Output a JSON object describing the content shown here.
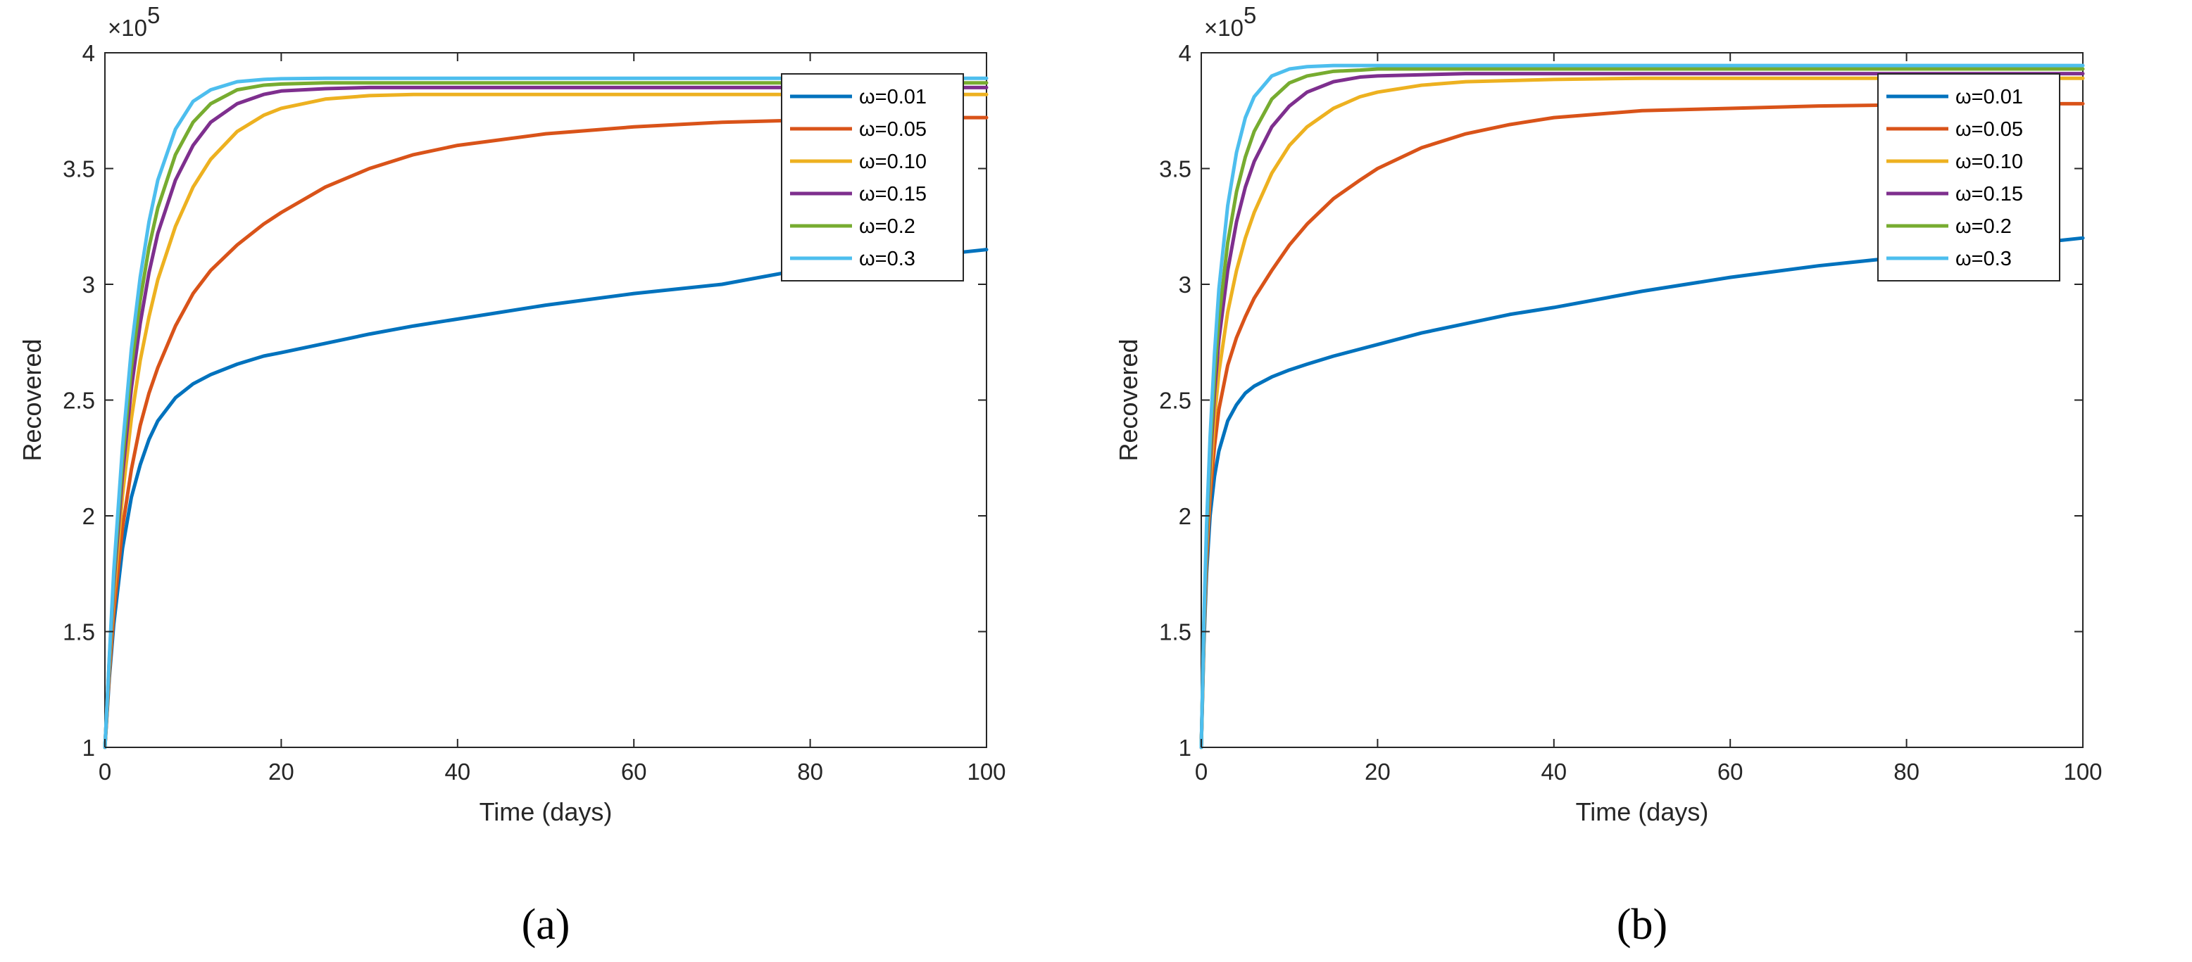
{
  "chart_data": [
    {
      "type": "line",
      "caption": "(a)",
      "xlabel": "Time (days)",
      "ylabel": "Recovered",
      "xlim": [
        0,
        100
      ],
      "ylim": [
        1,
        4
      ],
      "y_multiplier": "×10",
      "y_exponent": "5",
      "xticks": [
        0,
        20,
        40,
        60,
        80,
        100
      ],
      "yticks": [
        1,
        1.5,
        2,
        2.5,
        3,
        3.5,
        4
      ],
      "legend_position": "top-right",
      "x": [
        0,
        0.5,
        1,
        2,
        3,
        4,
        5,
        6,
        8,
        10,
        12,
        15,
        18,
        20,
        25,
        30,
        35,
        40,
        50,
        60,
        70,
        80,
        90,
        100
      ],
      "series": [
        {
          "name": "ω=0.01",
          "color": "#0072BD",
          "values": [
            1.0,
            1.3,
            1.53,
            1.86,
            2.08,
            2.22,
            2.33,
            2.41,
            2.51,
            2.57,
            2.61,
            2.655,
            2.69,
            2.705,
            2.745,
            2.785,
            2.82,
            2.85,
            2.91,
            2.96,
            3.0,
            3.07,
            3.11,
            3.15
          ]
        },
        {
          "name": "ω=0.05",
          "color": "#D95319",
          "values": [
            1.0,
            1.32,
            1.58,
            1.95,
            2.2,
            2.39,
            2.53,
            2.64,
            2.82,
            2.96,
            3.06,
            3.17,
            3.26,
            3.31,
            3.42,
            3.5,
            3.56,
            3.6,
            3.65,
            3.68,
            3.7,
            3.71,
            3.72,
            3.72
          ]
        },
        {
          "name": "ω=0.10",
          "color": "#EDB120",
          "values": [
            1.0,
            1.35,
            1.65,
            2.09,
            2.42,
            2.67,
            2.86,
            3.02,
            3.25,
            3.42,
            3.54,
            3.66,
            3.73,
            3.76,
            3.8,
            3.815,
            3.82,
            3.82,
            3.82,
            3.82,
            3.82,
            3.82,
            3.82,
            3.82
          ]
        },
        {
          "name": "ω=0.15",
          "color": "#7E2F8E",
          "values": [
            1.0,
            1.37,
            1.7,
            2.18,
            2.55,
            2.83,
            3.05,
            3.22,
            3.45,
            3.6,
            3.7,
            3.78,
            3.82,
            3.835,
            3.845,
            3.85,
            3.85,
            3.85,
            3.85,
            3.85,
            3.85,
            3.85,
            3.85,
            3.85
          ]
        },
        {
          "name": "ω=0.2",
          "color": "#77AC30",
          "values": [
            1.0,
            1.38,
            1.73,
            2.24,
            2.64,
            2.93,
            3.16,
            3.33,
            3.56,
            3.7,
            3.78,
            3.84,
            3.86,
            3.865,
            3.87,
            3.87,
            3.87,
            3.87,
            3.87,
            3.87,
            3.87,
            3.87,
            3.87,
            3.87
          ]
        },
        {
          "name": "ω=0.3",
          "color": "#4DBEEE",
          "values": [
            1.0,
            1.39,
            1.76,
            2.3,
            2.72,
            3.03,
            3.27,
            3.45,
            3.67,
            3.79,
            3.84,
            3.875,
            3.885,
            3.888,
            3.89,
            3.89,
            3.89,
            3.89,
            3.89,
            3.89,
            3.89,
            3.89,
            3.89,
            3.89
          ]
        }
      ]
    },
    {
      "type": "line",
      "caption": "(b)",
      "xlabel": "Time (days)",
      "ylabel": "Recovered",
      "xlim": [
        0,
        100
      ],
      "ylim": [
        1,
        4
      ],
      "y_multiplier": "×10",
      "y_exponent": "5",
      "xticks": [
        0,
        20,
        40,
        60,
        80,
        100
      ],
      "yticks": [
        1,
        1.5,
        2,
        2.5,
        3,
        3.5,
        4
      ],
      "legend_position": "top-right",
      "x": [
        0,
        0.3,
        0.6,
        1,
        1.5,
        2,
        3,
        4,
        5,
        6,
        8,
        10,
        12,
        15,
        18,
        20,
        25,
        30,
        35,
        40,
        50,
        60,
        70,
        80,
        90,
        100
      ],
      "series": [
        {
          "name": "ω=0.01",
          "color": "#0072BD",
          "values": [
            1.0,
            1.45,
            1.75,
            2.0,
            2.17,
            2.28,
            2.41,
            2.48,
            2.53,
            2.56,
            2.6,
            2.63,
            2.655,
            2.69,
            2.72,
            2.74,
            2.79,
            2.83,
            2.87,
            2.9,
            2.97,
            3.03,
            3.08,
            3.12,
            3.16,
            3.2
          ]
        },
        {
          "name": "ω=0.05",
          "color": "#D95319",
          "values": [
            1.0,
            1.48,
            1.8,
            2.08,
            2.3,
            2.46,
            2.65,
            2.77,
            2.86,
            2.94,
            3.06,
            3.17,
            3.26,
            3.37,
            3.45,
            3.5,
            3.59,
            3.65,
            3.69,
            3.72,
            3.75,
            3.76,
            3.77,
            3.775,
            3.78,
            3.78
          ]
        },
        {
          "name": "ω=0.10",
          "color": "#EDB120",
          "values": [
            1.0,
            1.5,
            1.85,
            2.15,
            2.42,
            2.62,
            2.88,
            3.06,
            3.2,
            3.31,
            3.48,
            3.6,
            3.68,
            3.76,
            3.81,
            3.83,
            3.86,
            3.875,
            3.88,
            3.885,
            3.89,
            3.89,
            3.89,
            3.89,
            3.89,
            3.89
          ]
        },
        {
          "name": "ω=0.15",
          "color": "#7E2F8E",
          "values": [
            1.0,
            1.52,
            1.89,
            2.22,
            2.53,
            2.76,
            3.06,
            3.27,
            3.42,
            3.53,
            3.68,
            3.77,
            3.83,
            3.875,
            3.895,
            3.9,
            3.905,
            3.91,
            3.91,
            3.91,
            3.91,
            3.91,
            3.91,
            3.91,
            3.91,
            3.91
          ]
        },
        {
          "name": "ω=0.2",
          "color": "#77AC30",
          "values": [
            1.0,
            1.53,
            1.92,
            2.27,
            2.6,
            2.85,
            3.18,
            3.4,
            3.55,
            3.66,
            3.8,
            3.87,
            3.9,
            3.92,
            3.925,
            3.93,
            3.93,
            3.93,
            3.93,
            3.93,
            3.93,
            3.93,
            3.93,
            3.93,
            3.93,
            3.93
          ]
        },
        {
          "name": "ω=0.3",
          "color": "#4DBEEE",
          "values": [
            1.0,
            1.55,
            1.96,
            2.34,
            2.7,
            2.98,
            3.34,
            3.57,
            3.72,
            3.81,
            3.9,
            3.93,
            3.94,
            3.945,
            3.945,
            3.945,
            3.945,
            3.945,
            3.945,
            3.945,
            3.945,
            3.945,
            3.945,
            3.945,
            3.945,
            3.945
          ]
        }
      ]
    }
  ]
}
